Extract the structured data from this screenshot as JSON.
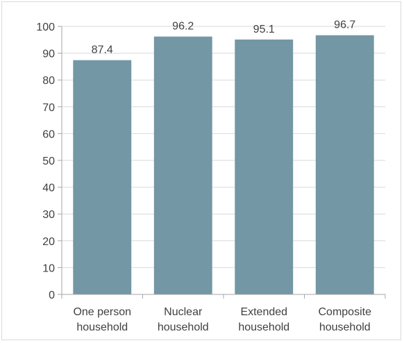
{
  "chart_data": {
    "type": "bar",
    "categories": [
      [
        "One person",
        "household"
      ],
      [
        "Nuclear",
        "household"
      ],
      [
        "Extended",
        "household"
      ],
      [
        "Composite",
        "household"
      ]
    ],
    "values": [
      87.4,
      96.2,
      95.1,
      96.7
    ],
    "value_labels": [
      "87.4",
      "96.2",
      "95.1",
      "96.7"
    ],
    "ylim": [
      0,
      100
    ],
    "yticks": [
      0,
      10,
      20,
      30,
      40,
      50,
      60,
      70,
      80,
      90,
      100
    ],
    "grid": true,
    "legend": "none",
    "bar_color": "#7397a4",
    "grid_color": "#d9d9d9",
    "axis_color": "#a6a6a6"
  }
}
